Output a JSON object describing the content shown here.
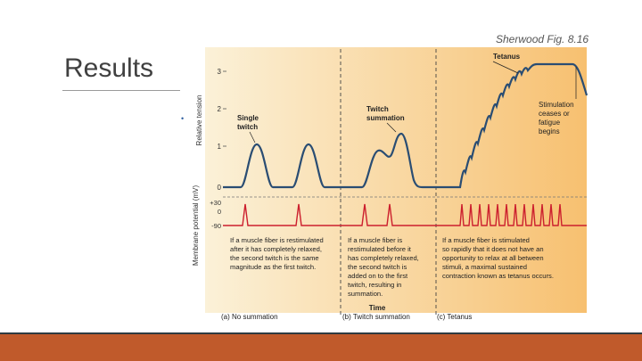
{
  "slide": {
    "title": "Results",
    "credit": "Sherwood Fig. 8.16",
    "bullet": "•"
  },
  "figure": {
    "y_label_tension": "Relative tension",
    "y_label_potential": "Membrane potential (mV)",
    "tension_ticks": [
      "3",
      "2",
      "1",
      "0"
    ],
    "potential_ticks": [
      "+30",
      "0",
      "-90"
    ],
    "annotations": {
      "single_twitch": [
        "Single",
        "twitch"
      ],
      "twitch_summation": [
        "Twitch",
        "summation"
      ],
      "tetanus": "Tetanus",
      "stimulation": [
        "Stimulation",
        "ceases or",
        "fatigue",
        "begins"
      ]
    },
    "captions": {
      "a": [
        "If a muscle fiber is restimulated",
        "after it has completely relaxed,",
        "the second twitch is the same",
        "magnitude as the first twitch."
      ],
      "b": [
        "If a muscle fiber is",
        "restimulated before it",
        "has completely relaxed,",
        "the second twitch is",
        "added on to the first",
        "twitch, resulting in",
        "summation."
      ],
      "c": [
        "If a muscle fiber is stimulated",
        "so rapidly that it does not have an",
        "opportunity to relax at all between",
        "stimuli, a maximal sustained",
        "contraction known as tetanus occurs."
      ]
    },
    "x_label": "Time",
    "panel_labels": {
      "a": "(a)  No summation",
      "b": "(b)  Twitch summation",
      "c": "(c)  Tetanus"
    }
  },
  "colors": {
    "panel_light": "#fbf1d8",
    "panel_warm": "#f7c070",
    "tension_trace": "#2a4d73",
    "potential_trace": "#cc1f2e",
    "footer_thin": "#2f3a40",
    "footer_thick": "#c05a2b"
  }
}
